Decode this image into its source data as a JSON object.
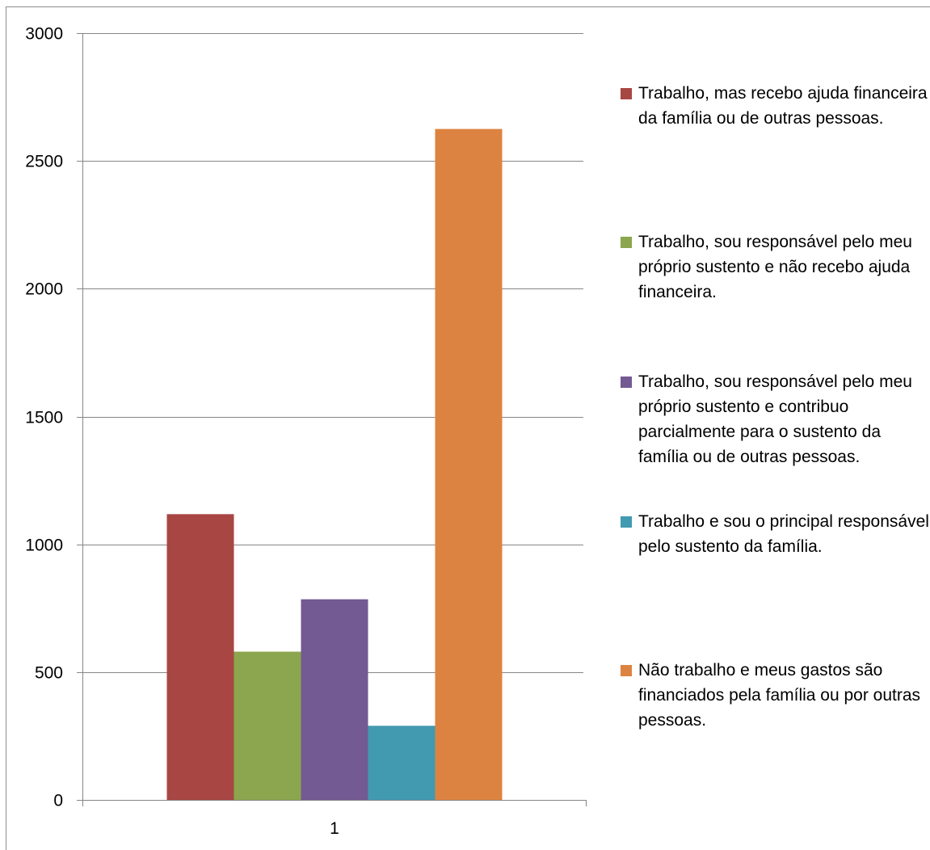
{
  "chart_data": {
    "type": "bar",
    "categories": [
      "1"
    ],
    "series": [
      {
        "name": "Trabalho, mas recebo ajuda financeira da família ou de outras pessoas.",
        "values": [
          1118
        ],
        "color": "#A84644"
      },
      {
        "name": "Trabalho, sou responsável pelo meu próprio sustento e não recebo ajuda financeira.",
        "values": [
          580
        ],
        "color": "#8BA64E"
      },
      {
        "name": "Trabalho, sou responsável pelo meu próprio sustento e contribuo parcialmente para o sustento da família ou de outras pessoas.",
        "values": [
          785
        ],
        "color": "#735A92"
      },
      {
        "name": "Trabalho e sou o principal responsável pelo sustento da família.",
        "values": [
          290
        ],
        "color": "#429AB1"
      },
      {
        "name": "Não trabalho e meus gastos são financiados pela família ou por outras pessoas.",
        "values": [
          2625
        ],
        "color": "#DD8341"
      }
    ],
    "ylim": [
      0,
      3000
    ],
    "yticks": [
      0,
      500,
      1000,
      1500,
      2000,
      2500,
      3000
    ],
    "yticklabels": [
      "0",
      "500",
      "1000",
      "1500",
      "2000",
      "2500",
      "3000"
    ],
    "grid": true,
    "legend_position": "right",
    "title": "",
    "xlabel": "",
    "ylabel": ""
  }
}
